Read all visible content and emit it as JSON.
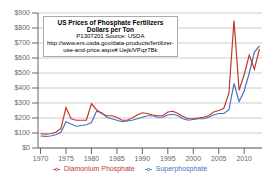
{
  "chart_data": {
    "type": "line",
    "title": "US Prices of Phosphate Fertilizers",
    "subtitle": "Dollars per Ton",
    "annotations": [
      "P1307201 Source: USDA",
      "http://www.ers.usda.gov/data-products/fertilizer-",
      "use-and-price.aspx#.Uejk/VPqz7Bk"
    ],
    "x": [
      1970,
      1971,
      1972,
      1973,
      1974,
      1975,
      1976,
      1977,
      1978,
      1979,
      1980,
      1981,
      1982,
      1983,
      1984,
      1985,
      1986,
      1987,
      1988,
      1989,
      1990,
      1991,
      1992,
      1993,
      1994,
      1995,
      1996,
      1997,
      1998,
      1999,
      2000,
      2001,
      2002,
      2003,
      2004,
      2005,
      2006,
      2007,
      2008,
      2009,
      2010,
      2011,
      2012,
      2013
    ],
    "series": [
      {
        "name": "Superphosphate",
        "color": "#4472c4",
        "values": [
          80,
          78,
          80,
          88,
          105,
          175,
          160,
          145,
          150,
          155,
          170,
          245,
          235,
          205,
          195,
          185,
          175,
          180,
          185,
          195,
          205,
          215,
          215,
          205,
          205,
          220,
          225,
          215,
          195,
          185,
          190,
          195,
          195,
          205,
          220,
          230,
          230,
          255,
          430,
          310,
          380,
          500,
          640,
          680
        ]
      },
      {
        "name": "Diamonium Phosphate",
        "color": "#c0392b",
        "values": [
          95,
          92,
          95,
          105,
          130,
          270,
          195,
          185,
          185,
          185,
          295,
          255,
          230,
          215,
          215,
          205,
          185,
          185,
          200,
          220,
          235,
          230,
          220,
          215,
          215,
          240,
          245,
          230,
          210,
          195,
          195,
          200,
          205,
          215,
          240,
          250,
          265,
          365,
          850,
          385,
          490,
          620,
          525,
          660
        ]
      }
    ],
    "xlim": [
      1969.5,
      2013.5
    ],
    "xticks": [
      1970,
      1975,
      1980,
      1985,
      1990,
      1995,
      2000,
      2005,
      2010
    ],
    "ylim": [
      0,
      900
    ],
    "yticks": [
      {
        "value": 0,
        "label": "$0"
      },
      {
        "value": 100,
        "label": "$100"
      },
      {
        "value": 200,
        "label": "$200"
      },
      {
        "value": 300,
        "label": "$300"
      },
      {
        "value": 400,
        "label": "$400"
      },
      {
        "value": 500,
        "label": "$500"
      },
      {
        "value": 600,
        "label": "$600"
      },
      {
        "value": 700,
        "label": "$700"
      },
      {
        "value": 800,
        "label": "$800"
      },
      {
        "value": 900,
        "label": "$900"
      }
    ],
    "grid": "y",
    "legend": "bottom"
  }
}
